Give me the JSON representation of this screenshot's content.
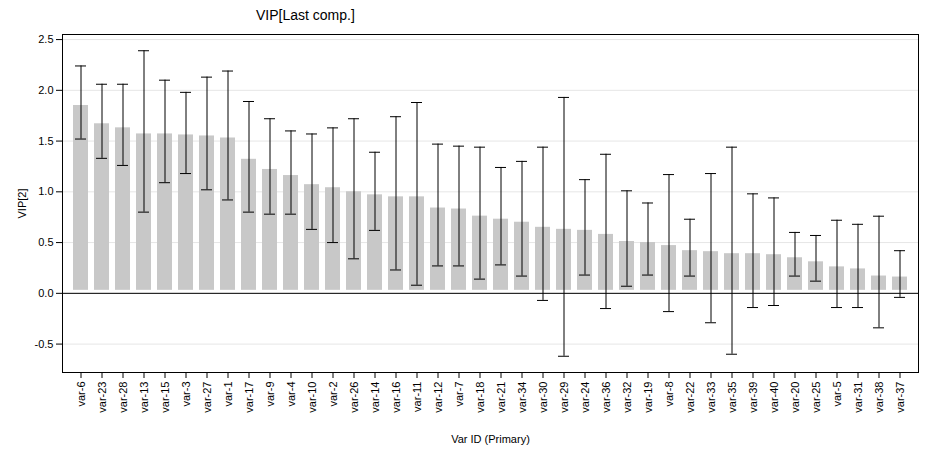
{
  "chart_data": {
    "type": "bar",
    "title": "VIP[Last comp.]",
    "x_label": "Var ID (Primary)",
    "y_label": "VIP[2]",
    "categories": [
      "var-6",
      "var-23",
      "var-28",
      "var-13",
      "var-15",
      "var-3",
      "var-27",
      "var-1",
      "var-17",
      "var-9",
      "var-4",
      "var-10",
      "var-2",
      "var-26",
      "var-14",
      "var-16",
      "var-11",
      "var-12",
      "var-7",
      "var-18",
      "var-21",
      "var-34",
      "var-30",
      "var-29",
      "var-24",
      "var-36",
      "var-32",
      "var-19",
      "var-8",
      "var-22",
      "var-33",
      "var-35",
      "var-39",
      "var-40",
      "var-20",
      "var-25",
      "var-5",
      "var-31",
      "var-38",
      "var-37"
    ],
    "values": [
      1.88,
      1.7,
      1.66,
      1.6,
      1.6,
      1.59,
      1.58,
      1.56,
      1.35,
      1.25,
      1.19,
      1.1,
      1.07,
      1.03,
      1.0,
      0.98,
      0.98,
      0.87,
      0.86,
      0.79,
      0.76,
      0.73,
      0.68,
      0.66,
      0.65,
      0.61,
      0.54,
      0.53,
      0.5,
      0.45,
      0.44,
      0.42,
      0.42,
      0.41,
      0.38,
      0.34,
      0.29,
      0.27,
      0.2,
      0.19
    ],
    "error_low": [
      1.52,
      1.33,
      1.26,
      0.8,
      1.09,
      1.18,
      1.02,
      0.92,
      0.8,
      0.78,
      0.78,
      0.63,
      0.5,
      0.34,
      0.62,
      0.23,
      0.08,
      0.27,
      0.27,
      0.14,
      0.28,
      0.17,
      -0.07,
      -0.62,
      0.18,
      -0.15,
      0.07,
      0.18,
      -0.18,
      0.17,
      -0.29,
      -0.6,
      -0.14,
      -0.12,
      0.17,
      0.12,
      -0.14,
      -0.14,
      -0.34,
      -0.04
    ],
    "error_high": [
      2.24,
      2.06,
      2.06,
      2.39,
      2.1,
      1.98,
      2.13,
      2.19,
      1.89,
      1.72,
      1.6,
      1.57,
      1.63,
      1.72,
      1.39,
      1.74,
      1.88,
      1.47,
      1.45,
      1.44,
      1.24,
      1.3,
      1.44,
      1.93,
      1.12,
      1.37,
      1.01,
      0.89,
      1.17,
      0.73,
      1.18,
      1.44,
      0.98,
      0.94,
      0.6,
      0.57,
      0.72,
      0.68,
      0.76,
      0.42
    ],
    "color": "#c8c8c8",
    "ylim": [
      -0.78,
      2.55
    ],
    "yticks": [
      -0.5,
      {
        "value": 0,
        "label": "0.0"
      },
      0.5,
      {
        "value": 1,
        "label": "1.0"
      },
      1.5,
      {
        "value": 2,
        "label": "2.0"
      },
      2.5
    ],
    "grid": true
  }
}
